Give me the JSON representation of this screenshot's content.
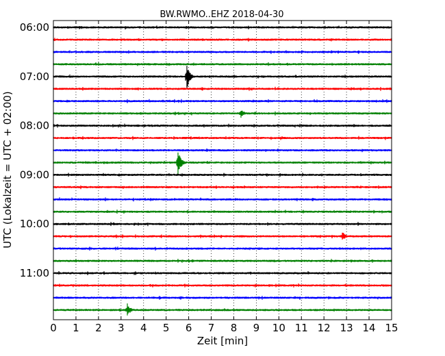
{
  "chart_data": {
    "type": "line",
    "title": "BW.RWMO..EHZ 2018-04-30",
    "xlabel": "Zeit  [min]",
    "ylabel": "UTC (Lokalzeit = UTC + 02:00)",
    "xlim": [
      0,
      15
    ],
    "xticks": [
      "0",
      "1",
      "2",
      "3",
      "4",
      "5",
      "6",
      "7",
      "8",
      "9",
      "10",
      "11",
      "12",
      "13",
      "14",
      "15"
    ],
    "yticks": [
      "06:00",
      "07:00",
      "08:00",
      "09:00",
      "10:00",
      "11:00"
    ],
    "grid": "vertical-dotted",
    "trace_interval_min": 15,
    "start_time": "06:00",
    "trace_count": 24,
    "colors": [
      "#000000",
      "#ff0000",
      "#0000ff",
      "#008000"
    ],
    "events": [
      {
        "trace_start": "07:00",
        "minute": 5.9,
        "amplitude": "large"
      },
      {
        "trace_start": "07:45",
        "minute": 8.3,
        "amplitude": "small"
      },
      {
        "trace_start": "08:45",
        "minute": 5.5,
        "amplitude": "large"
      },
      {
        "trace_start": "10:15",
        "minute": 12.8,
        "amplitude": "small"
      },
      {
        "trace_start": "11:45",
        "minute": 3.25,
        "amplitude": "medium"
      }
    ]
  }
}
